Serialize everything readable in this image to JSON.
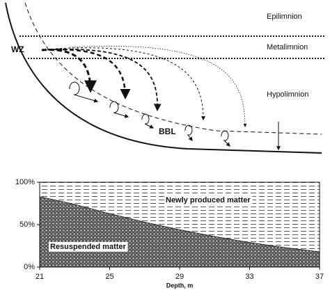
{
  "diagram": {
    "layers": [
      "Epilimnion",
      "Metalimnion",
      "Hypolimnion"
    ],
    "wz": "WZ",
    "bbl": "BBL"
  },
  "chart_data": {
    "type": "stacked-area",
    "x": [
      21,
      23,
      25,
      27,
      29,
      31,
      33,
      35,
      37
    ],
    "series": [
      {
        "name": "Resuspended matter",
        "values": [
          83,
          74,
          63,
          53,
          44,
          36,
          29,
          23,
          18
        ]
      },
      {
        "name": "Newly produced matter",
        "values": [
          17,
          26,
          37,
          47,
          56,
          64,
          71,
          77,
          82
        ]
      }
    ],
    "xlim": [
      21,
      37
    ],
    "xticks": [
      21,
      25,
      29,
      33,
      37
    ],
    "ylim": [
      0,
      100
    ],
    "yticks": [
      {
        "value": 0,
        "label": "0%"
      },
      {
        "value": 50,
        "label": "50%"
      },
      {
        "value": 100,
        "label": "100%"
      }
    ],
    "xlabel": "Depth, m"
  }
}
